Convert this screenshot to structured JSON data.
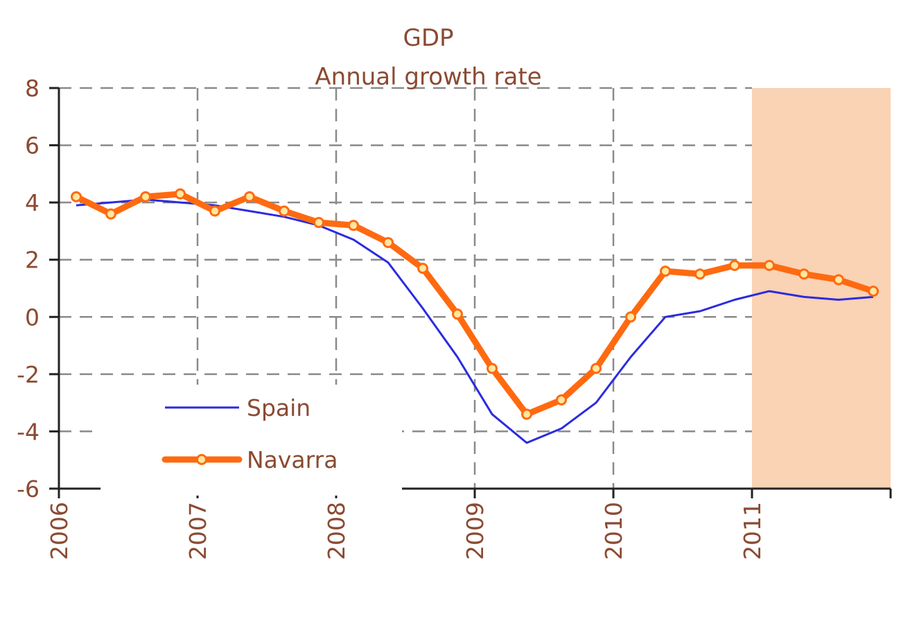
{
  "chart_data": {
    "type": "line",
    "title": "GDP",
    "subtitle": "Annual growth rate",
    "xlabel": "",
    "ylabel": "",
    "xlim": [
      2006,
      2012
    ],
    "ylim": [
      -6,
      8
    ],
    "y_ticks": [
      8,
      6,
      4,
      2,
      0,
      -2,
      -4,
      -6
    ],
    "x_tick_labels": [
      "2006",
      "2007",
      "2008",
      "2009",
      "2010",
      "2011"
    ],
    "grid": true,
    "legend_position": "bottom-left",
    "shaded_region": {
      "from": 2011,
      "to": 2012,
      "color": "#FAD2B4"
    },
    "series": [
      {
        "name": "Spain",
        "color": "#2B2BE0",
        "marker": false,
        "x": [
          2006.125,
          2006.375,
          2006.625,
          2006.875,
          2007.125,
          2007.375,
          2007.625,
          2007.875,
          2008.125,
          2008.375,
          2008.625,
          2008.875,
          2009.125,
          2009.375,
          2009.625,
          2009.875,
          2010.125,
          2010.375,
          2010.625,
          2010.875,
          2011.125,
          2011.375,
          2011.625,
          2011.875
        ],
        "values": [
          3.9,
          4.0,
          4.1,
          4.0,
          3.9,
          3.7,
          3.5,
          3.2,
          2.7,
          1.9,
          0.3,
          -1.4,
          -3.4,
          -4.4,
          -3.9,
          -3.0,
          -1.4,
          0.0,
          0.2,
          0.6,
          0.9,
          0.7,
          0.6,
          0.7
        ]
      },
      {
        "name": "Navarra",
        "color": "#FF6A10",
        "marker": true,
        "x": [
          2006.125,
          2006.375,
          2006.625,
          2006.875,
          2007.125,
          2007.375,
          2007.625,
          2007.875,
          2008.125,
          2008.375,
          2008.625,
          2008.875,
          2009.125,
          2009.375,
          2009.625,
          2009.875,
          2010.125,
          2010.375,
          2010.625,
          2010.875,
          2011.125,
          2011.375,
          2011.625,
          2011.875
        ],
        "values": [
          4.2,
          3.6,
          4.2,
          4.3,
          3.7,
          4.2,
          3.7,
          3.3,
          3.2,
          2.6,
          1.7,
          0.1,
          -1.8,
          -3.4,
          -2.9,
          -1.8,
          0.0,
          1.6,
          1.5,
          1.8,
          1.8,
          1.5,
          1.3,
          0.9
        ]
      }
    ]
  }
}
